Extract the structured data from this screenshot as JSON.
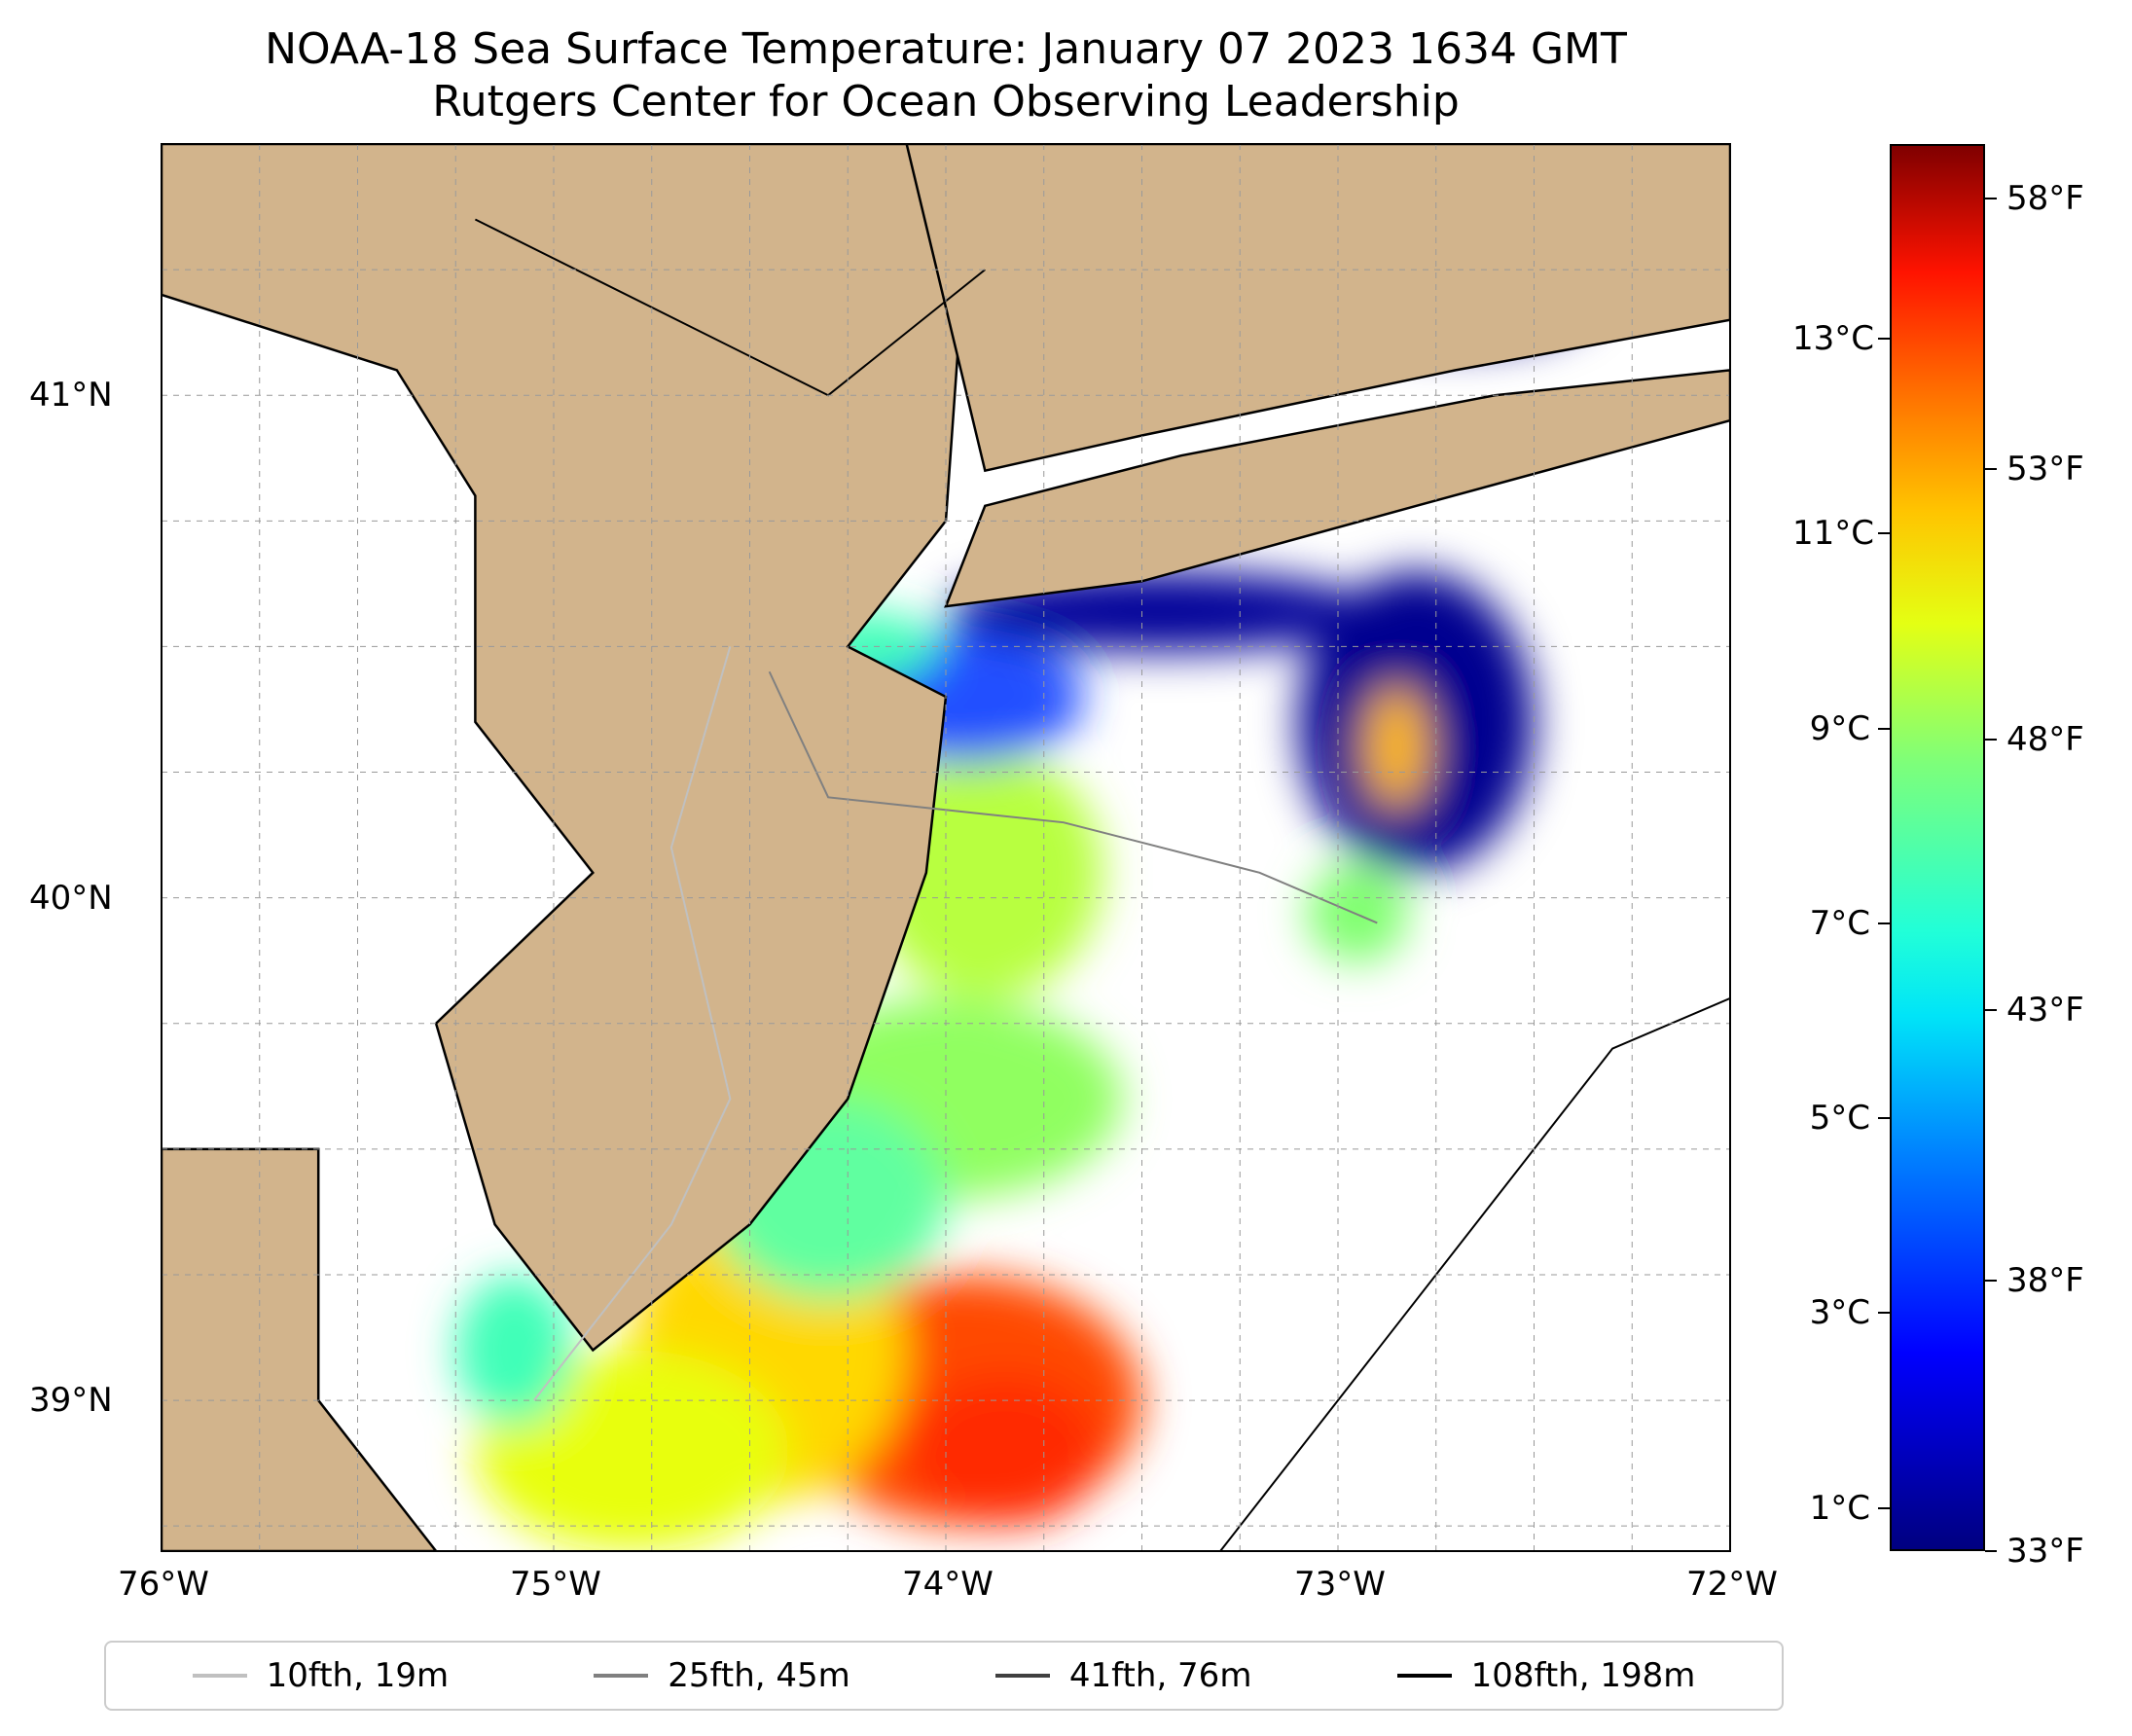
{
  "title": {
    "line1": "NOAA-18 Sea Surface Temperature: January 07 2023 1634 GMT",
    "line2": "Rutgers Center for Ocean Observing Leadership"
  },
  "map": {
    "lon_range": [
      -76,
      -72
    ],
    "lat_range": [
      38.7,
      41.5
    ],
    "lon_ticks": [
      {
        "value": -76,
        "label": "76°W"
      },
      {
        "value": -75,
        "label": "75°W"
      },
      {
        "value": -74,
        "label": "74°W"
      },
      {
        "value": -73,
        "label": "73°W"
      },
      {
        "value": -72,
        "label": "72°W"
      }
    ],
    "lat_ticks": [
      {
        "value": 41,
        "label": "41°N"
      },
      {
        "value": 40,
        "label": "40°N"
      },
      {
        "value": 39,
        "label": "39°N"
      }
    ],
    "gridlines": true,
    "land_color": "#d2b48c",
    "background_color": "#ffffff"
  },
  "colorbar": {
    "colormap": "jet",
    "range_f": [
      33,
      59
    ],
    "celsius_ticks": [
      {
        "value_c": 1,
        "label": "1°C"
      },
      {
        "value_c": 3,
        "label": "3°C"
      },
      {
        "value_c": 5,
        "label": "5°C"
      },
      {
        "value_c": 7,
        "label": "7°C"
      },
      {
        "value_c": 9,
        "label": "9°C"
      },
      {
        "value_c": 11,
        "label": "11°C"
      },
      {
        "value_c": 13,
        "label": "13°C"
      }
    ],
    "fahrenheit_ticks": [
      {
        "value_f": 33,
        "label": "33°F"
      },
      {
        "value_f": 38,
        "label": "38°F"
      },
      {
        "value_f": 43,
        "label": "43°F"
      },
      {
        "value_f": 48,
        "label": "48°F"
      },
      {
        "value_f": 53,
        "label": "53°F"
      },
      {
        "value_f": 58,
        "label": "58°F"
      }
    ]
  },
  "legend": {
    "items": [
      {
        "label": "10fth, 19m",
        "color": "#c0c0c0"
      },
      {
        "label": "25fth, 45m",
        "color": "#808080"
      },
      {
        "label": "41fth, 76m",
        "color": "#404040"
      },
      {
        "label": "108fth, 198m",
        "color": "#000000"
      }
    ]
  },
  "sst_patches": [
    {
      "lon": -73.95,
      "lat": 39.0,
      "rx": 0.45,
      "ry": 0.25,
      "color": "#ff4a00"
    },
    {
      "lon": -73.85,
      "lat": 38.9,
      "rx": 0.25,
      "ry": 0.15,
      "color": "#ff2a00"
    },
    {
      "lon": -74.45,
      "lat": 39.1,
      "rx": 0.35,
      "ry": 0.3,
      "color": "#ffd800"
    },
    {
      "lon": -74.8,
      "lat": 38.9,
      "rx": 0.4,
      "ry": 0.2,
      "color": "#e8ff10"
    },
    {
      "lon": -75.1,
      "lat": 39.1,
      "rx": 0.15,
      "ry": 0.15,
      "color": "#40ffb8"
    },
    {
      "lon": -74.0,
      "lat": 39.6,
      "rx": 0.45,
      "ry": 0.2,
      "color": "#90ff60"
    },
    {
      "lon": -74.3,
      "lat": 39.4,
      "rx": 0.3,
      "ry": 0.2,
      "color": "#60ffa0"
    },
    {
      "lon": -73.9,
      "lat": 40.05,
      "rx": 0.3,
      "ry": 0.25,
      "color": "#b8ff40"
    },
    {
      "lon": -73.95,
      "lat": 40.4,
      "rx": 0.3,
      "ry": 0.13,
      "color": "#2050ff"
    },
    {
      "lon": -73.45,
      "lat": 40.57,
      "rx": 0.55,
      "ry": 0.08,
      "color": "#000099"
    },
    {
      "lon": -72.8,
      "lat": 40.35,
      "rx": 0.3,
      "ry": 0.3,
      "color": "#000090"
    },
    {
      "lon": -72.85,
      "lat": 40.3,
      "rx": 0.08,
      "ry": 0.12,
      "color": "#ffb800"
    },
    {
      "lon": -72.95,
      "lat": 39.97,
      "rx": 0.13,
      "ry": 0.1,
      "color": "#80ff70"
    },
    {
      "lon": -72.7,
      "lat": 41.2,
      "rx": 0.35,
      "ry": 0.1,
      "color": "#000090"
    },
    {
      "lon": -74.2,
      "lat": 40.5,
      "rx": 0.18,
      "ry": 0.07,
      "color": "#40ffb8"
    }
  ],
  "isobaths": {
    "coastline": [
      [
        -76.0,
        41.2
      ],
      [
        -75.4,
        41.05
      ],
      [
        -75.2,
        40.8
      ],
      [
        -75.2,
        40.35
      ],
      [
        -74.9,
        40.05
      ],
      [
        -75.3,
        39.75
      ],
      [
        -75.15,
        39.35
      ],
      [
        -74.9,
        39.1
      ],
      [
        -74.5,
        39.35
      ],
      [
        -74.25,
        39.6
      ],
      [
        -74.05,
        40.05
      ],
      [
        -74.0,
        40.4
      ],
      [
        -74.25,
        40.5
      ],
      [
        -74.0,
        40.75
      ],
      [
        -73.95,
        41.3
      ]
    ],
    "longisland": [
      [
        -74.0,
        40.58
      ],
      [
        -73.5,
        40.63
      ],
      [
        -72.8,
        40.78
      ],
      [
        -72.0,
        40.95
      ],
      [
        -72.0,
        41.05
      ],
      [
        -72.6,
        41.0
      ],
      [
        -73.4,
        40.88
      ],
      [
        -73.9,
        40.78
      ]
    ],
    "shelf_198m": [
      [
        -73.3,
        38.7
      ],
      [
        -72.9,
        39.1
      ],
      [
        -72.6,
        39.4
      ],
      [
        -72.3,
        39.7
      ],
      [
        -72.0,
        39.8
      ]
    ],
    "depth_45m": [
      [
        -74.45,
        40.45
      ],
      [
        -74.3,
        40.2
      ],
      [
        -73.7,
        40.15
      ],
      [
        -73.2,
        40.05
      ],
      [
        -72.9,
        39.95
      ]
    ],
    "depth_19m": [
      [
        -74.55,
        40.5
      ],
      [
        -74.7,
        40.1
      ],
      [
        -74.55,
        39.6
      ],
      [
        -74.7,
        39.35
      ],
      [
        -75.05,
        39.0
      ]
    ]
  }
}
